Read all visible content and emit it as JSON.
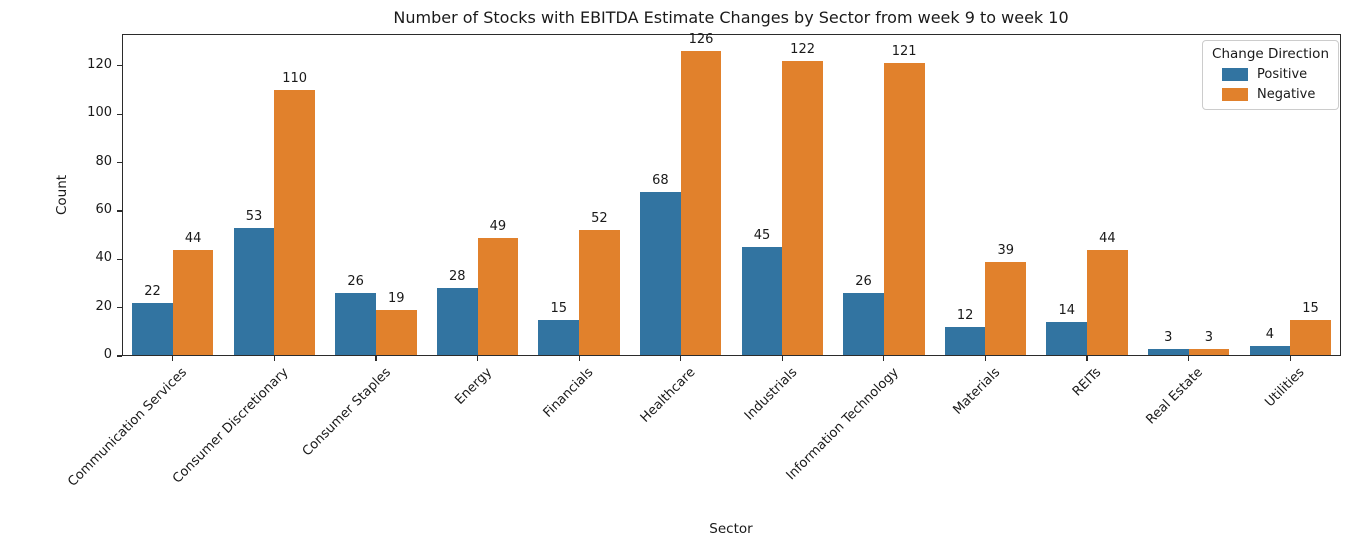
{
  "chart_data": {
    "type": "bar",
    "title": "Number of Stocks with EBITDA Estimate Changes by Sector from week 9 to week 10",
    "xlabel": "Sector",
    "ylabel": "Count",
    "categories": [
      "Communication Services",
      "Consumer Discretionary",
      "Consumer Staples",
      "Energy",
      "Financials",
      "Healthcare",
      "Industrials",
      "Information Technology",
      "Materials",
      "REITs",
      "Real Estate",
      "Utilities"
    ],
    "series": [
      {
        "name": "Positive",
        "color": "#3274a1",
        "values": [
          22,
          53,
          26,
          28,
          15,
          68,
          45,
          26,
          12,
          14,
          3,
          4
        ]
      },
      {
        "name": "Negative",
        "color": "#e1812c",
        "values": [
          44,
          110,
          19,
          49,
          52,
          126,
          122,
          121,
          39,
          44,
          3,
          15
        ]
      }
    ],
    "legend_title": "Change Direction",
    "legend_position": "upper right",
    "yticks": [
      0,
      20,
      40,
      60,
      80,
      100,
      120
    ],
    "ylim": [
      0,
      133.2
    ],
    "grid": false,
    "bar_labels": true,
    "background_color": "#ffffff",
    "spine_color": "#2b2b2b"
  }
}
